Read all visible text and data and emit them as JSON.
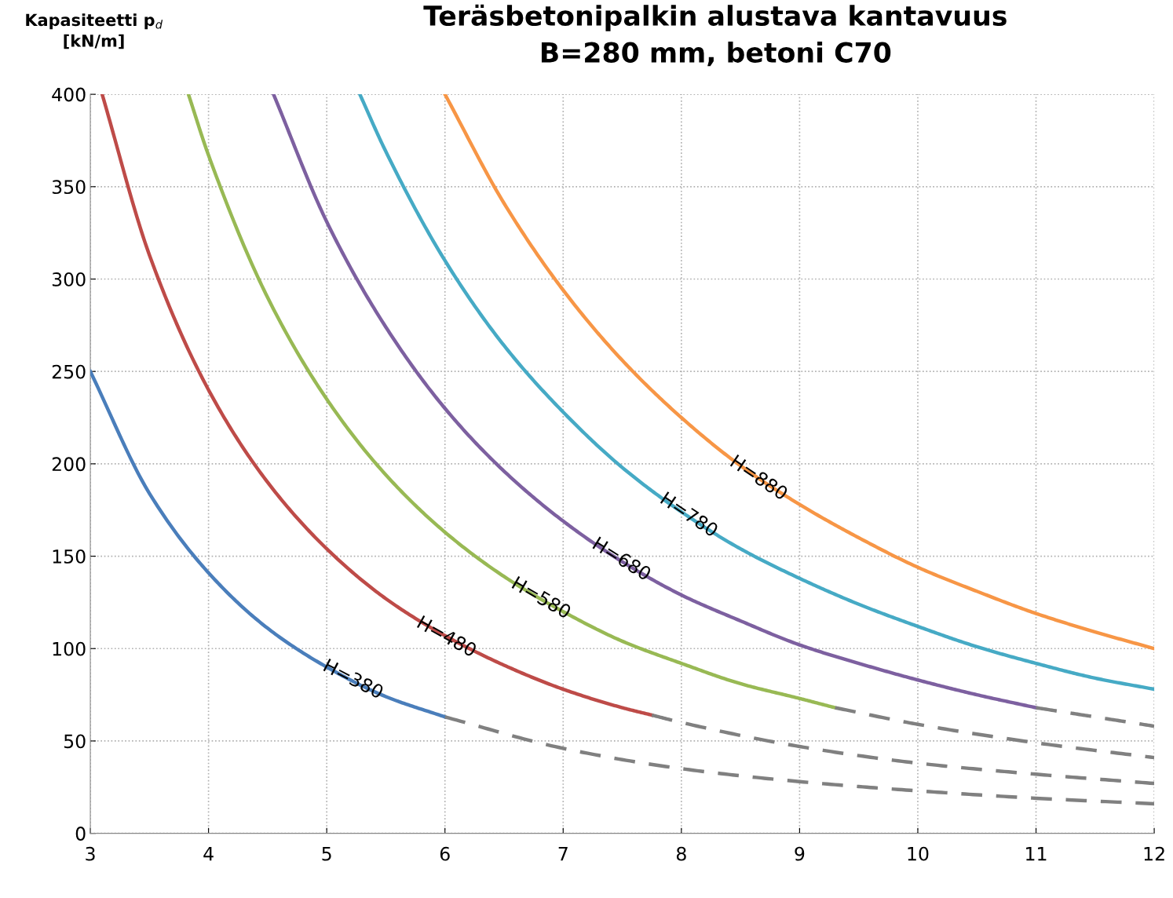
{
  "chart_data": {
    "type": "line",
    "title": "Teräsbetonipalkin alustava kantavuus\nB=280 mm, betoni C70",
    "ylabel": "Kapasiteetti p$_{d}$\n[kN/m]",
    "xlim": [
      3,
      12
    ],
    "xticks": [
      3,
      4,
      5,
      6,
      7,
      8,
      9,
      10,
      11,
      12
    ],
    "ylim": [
      0,
      400
    ],
    "yticks": [
      0,
      50,
      100,
      150,
      200,
      250,
      300,
      350,
      400
    ],
    "grid": true,
    "legend": false,
    "marker": "none",
    "series": [
      {
        "color": "#4a7ebb",
        "line_style": "solid",
        "x": [
          3,
          3.5,
          4,
          4.5,
          5,
          5.5,
          6
        ],
        "values": [
          250,
          184,
          141,
          111,
          90,
          74,
          63
        ]
      },
      {
        "color": "#808080",
        "line_style": "dashed",
        "x": [
          6,
          7,
          8,
          9,
          10,
          11,
          12
        ],
        "values": [
          63,
          46,
          35,
          28,
          23,
          19,
          16
        ]
      },
      {
        "color": "#be4b48",
        "line_style": "solid",
        "x": [
          3.1,
          3.5,
          4,
          4.5,
          5,
          5.5,
          6,
          6.5,
          7,
          7.5,
          7.75
        ],
        "values": [
          400,
          313,
          240,
          190,
          154,
          127,
          107,
          91,
          78,
          68,
          64
        ]
      },
      {
        "color": "#808080",
        "line_style": "dashed",
        "x": [
          7.75,
          8,
          9,
          10,
          11,
          12
        ],
        "values": [
          64,
          60,
          47,
          38,
          32,
          27
        ]
      },
      {
        "color": "#98b954",
        "line_style": "solid",
        "x": [
          3.83,
          4,
          4.5,
          5,
          5.5,
          6,
          6.5,
          7,
          7.5,
          8,
          8.5,
          9,
          9.3
        ],
        "values": [
          400,
          367,
          290,
          235,
          194,
          163,
          139,
          120,
          104,
          92,
          81,
          73,
          68
        ]
      },
      {
        "color": "#808080",
        "line_style": "dashed",
        "x": [
          9.3,
          10,
          11,
          12
        ],
        "values": [
          68,
          59,
          49,
          41
        ]
      },
      {
        "color": "#7d60a0",
        "line_style": "solid",
        "x": [
          4.55,
          5,
          5.5,
          6,
          6.5,
          7,
          7.5,
          8,
          8.5,
          9,
          9.5,
          10,
          10.5,
          11
        ],
        "values": [
          400,
          331,
          274,
          230,
          196,
          169,
          147,
          129,
          115,
          102,
          92,
          83,
          75,
          68
        ]
      },
      {
        "color": "#808080",
        "line_style": "dashed",
        "x": [
          11,
          11.5,
          12
        ],
        "values": [
          68,
          63,
          58
        ]
      },
      {
        "color": "#46aac5",
        "line_style": "solid",
        "x": [
          5.28,
          5.5,
          6,
          6.5,
          7,
          7.5,
          8,
          8.5,
          9,
          9.5,
          10,
          10.5,
          11,
          11.5,
          12
        ],
        "values": [
          400,
          369,
          310,
          264,
          228,
          198,
          174,
          154,
          138,
          124,
          112,
          101,
          92,
          84,
          78
        ]
      },
      {
        "color": "#f79646",
        "line_style": "solid",
        "x": [
          6,
          6.5,
          7,
          7.5,
          8,
          8.5,
          9,
          9.5,
          10,
          10.5,
          11,
          11.5,
          12
        ],
        "values": [
          400,
          341,
          294,
          256,
          225,
          199,
          178,
          160,
          144,
          131,
          119,
          109,
          100
        ]
      }
    ],
    "annotations": [
      {
        "text": "H=380",
        "x": 5.22,
        "y": 83
      },
      {
        "text": "H=480",
        "x": 6.01,
        "y": 106
      },
      {
        "text": "H=580",
        "x": 6.81,
        "y": 127
      },
      {
        "text": "H=680",
        "x": 7.49,
        "y": 148
      },
      {
        "text": "H=780",
        "x": 8.06,
        "y": 172
      },
      {
        "text": "H=880",
        "x": 8.65,
        "y": 192
      }
    ]
  }
}
